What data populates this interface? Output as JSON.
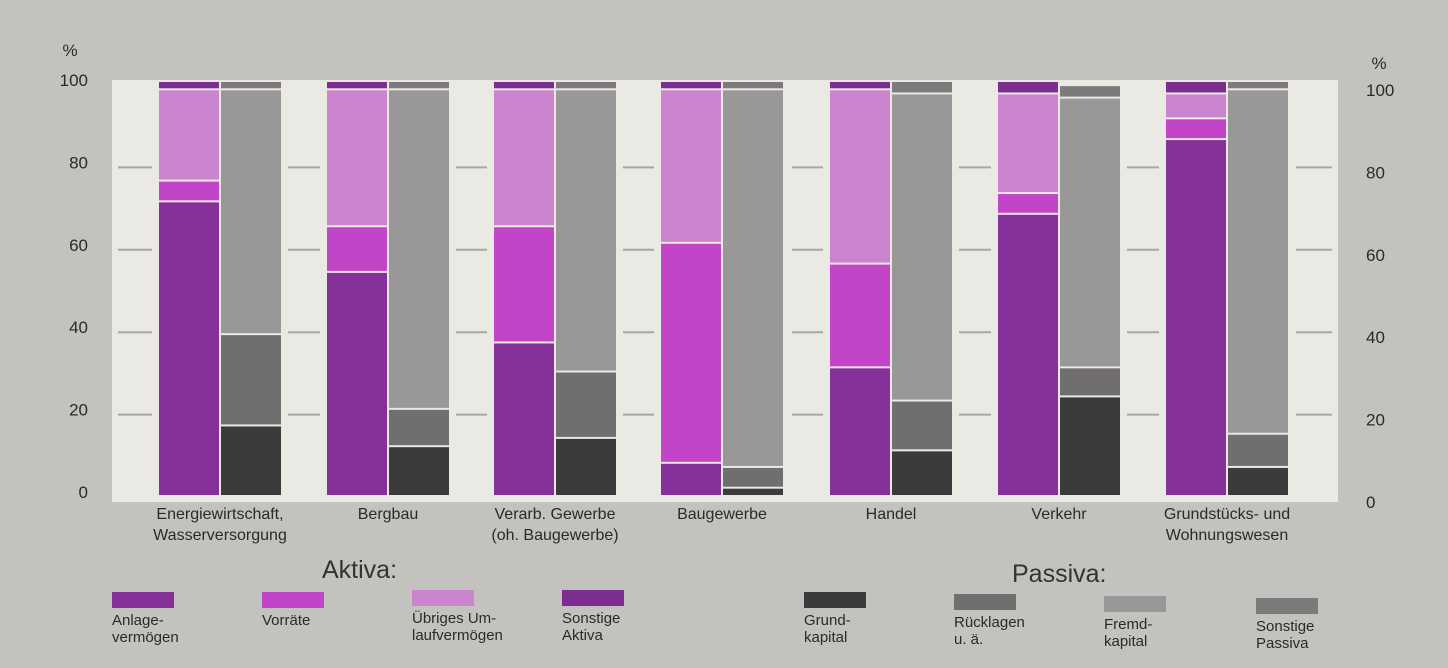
{
  "chart_data": {
    "type": "bar",
    "stacked": true,
    "left_axis": {
      "unit": "%",
      "ticks": [
        "100",
        "80",
        "60",
        "40",
        "20",
        "0"
      ]
    },
    "right_axis": {
      "unit": "%",
      "ticks": [
        "100",
        "80",
        "60",
        "40",
        "20",
        "0"
      ]
    },
    "ylim": [
      0,
      100
    ],
    "categories": [
      {
        "line1": "Energiewirtschaft,",
        "line2": "Wasserversorgung"
      },
      {
        "line1": "Bergbau",
        "line2": ""
      },
      {
        "line1": "Verarb. Gewerbe",
        "line2": "(oh. Baugewerbe)"
      },
      {
        "line1": "Baugewerbe",
        "line2": ""
      },
      {
        "line1": "Handel",
        "line2": ""
      },
      {
        "line1": "Verkehr",
        "line2": ""
      },
      {
        "line1": "Grundstücks- und",
        "line2": "Wohnungswesen"
      }
    ],
    "aktiva": {
      "title": "Aktiva:",
      "series": [
        {
          "name": "Anlagevermögen",
          "label": "Anlage-\nvermögen",
          "color": "#86319a",
          "values": [
            71,
            54,
            37,
            8,
            31,
            68,
            86
          ]
        },
        {
          "name": "Vorräte",
          "label": "Vorräte",
          "color": "#c245c8",
          "values": [
            5,
            11,
            28,
            53,
            25,
            5,
            5
          ]
        },
        {
          "name": "Übriges Umlaufvermögen",
          "label": "Übriges Um-\nlaufvermögen",
          "color": "#cb85cf",
          "values": [
            22,
            33,
            33,
            37,
            42,
            24,
            6
          ]
        },
        {
          "name": "Sonstige Aktiva",
          "label": "Sonstige\nAktiva",
          "color": "#7d2c8f",
          "values": [
            2,
            2,
            2,
            2,
            2,
            3,
            3
          ]
        }
      ]
    },
    "passiva": {
      "title": "Passiva:",
      "series": [
        {
          "name": "Grundkapital",
          "label": "Grund-\nkapital",
          "color": "#3c3a3b",
          "values": [
            17,
            12,
            14,
            2,
            11,
            24,
            7
          ]
        },
        {
          "name": "Rücklagen u. ä.",
          "label": "Rücklagen\nu. ä.",
          "color": "#706e6f",
          "values": [
            22,
            9,
            16,
            5,
            12,
            7,
            8
          ]
        },
        {
          "name": "Fremdkapital",
          "label": "Fremd-\nkapital",
          "color": "#999798",
          "values": [
            59,
            77,
            68,
            91,
            74,
            65,
            83
          ]
        },
        {
          "name": "Sonstige Passiva",
          "label": "Sonstige\nPassiva",
          "color": "#7c7a7b",
          "values": [
            2,
            2,
            2,
            2,
            3,
            3,
            2
          ]
        }
      ]
    }
  }
}
